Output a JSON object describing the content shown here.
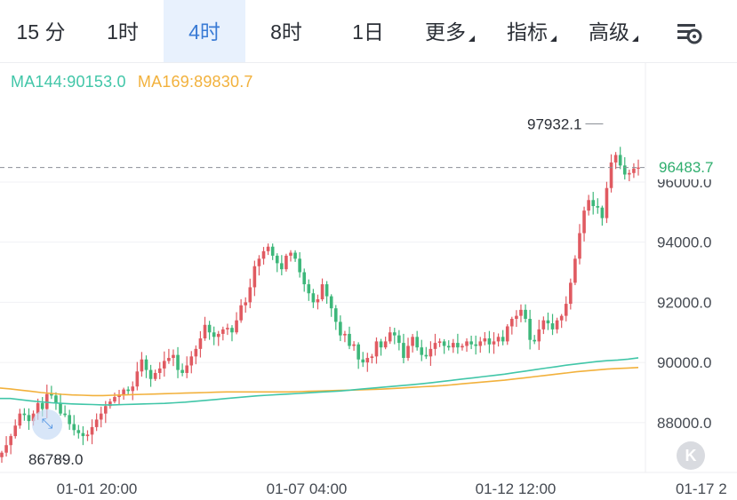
{
  "tabs": [
    {
      "label": "15 分",
      "active": false,
      "dropdown": false
    },
    {
      "label": "1时",
      "active": false,
      "dropdown": false
    },
    {
      "label": "4时",
      "active": true,
      "dropdown": false
    },
    {
      "label": "8时",
      "active": false,
      "dropdown": false
    },
    {
      "label": "1日",
      "active": false,
      "dropdown": false
    },
    {
      "label": "更多",
      "active": false,
      "dropdown": true
    },
    {
      "label": "指标",
      "active": false,
      "dropdown": true
    },
    {
      "label": "高级",
      "active": false,
      "dropdown": true
    }
  ],
  "settings_icon": "chart-settings-icon",
  "indicators": {
    "ma144_label": "MA144:90153.0",
    "ma169_label": "MA169:89830.7",
    "ma144_color": "#41c6a8",
    "ma169_color": "#f2b13c"
  },
  "colors": {
    "up": "#e05a61",
    "down": "#3db77a",
    "accent": "#3a7bd5",
    "last_price": "#2fae6e"
  },
  "price_tag": "96483.7",
  "scroll_icon": "scroll-to-latest-icon",
  "zoom_icon": "zoom-expand-icon",
  "chart_data": {
    "type": "candlestick",
    "interval": "4h",
    "y_tick_labels": [
      "88000.0",
      "90000.0",
      "92000.0",
      "94000.0",
      "96000.0"
    ],
    "y_ticks": [
      88000,
      90000,
      92000,
      94000,
      96000
    ],
    "x_tick_labels": [
      "01-01 20:00",
      "01-07 04:00",
      "01-12 12:00",
      "01-17 2"
    ],
    "ylim": [
      86400,
      99100
    ],
    "high_label": "97932.1",
    "high_value": 97932.1,
    "low_label": "86789.0",
    "low_value": 86789.0,
    "last_price": 96483.7,
    "grid": true,
    "closes": [
      87000,
      87250,
      87550,
      87900,
      88300,
      88250,
      88050,
      88300,
      88650,
      88450,
      88950,
      88900,
      88650,
      88300,
      88250,
      87950,
      87750,
      87650,
      87550,
      87600,
      87850,
      88100,
      88300,
      88550,
      88700,
      88850,
      88900,
      89100,
      89050,
      89200,
      89700,
      90100,
      89750,
      89450,
      89650,
      89800,
      90050,
      90150,
      90250,
      89750,
      89650,
      89900,
      90200,
      90450,
      90800,
      91250,
      91000,
      90850,
      90950,
      91100,
      91150,
      91000,
      91400,
      91900,
      92000,
      92500,
      93200,
      93450,
      93700,
      93850,
      93550,
      93300,
      93100,
      93550,
      93650,
      93450,
      93000,
      92600,
      92300,
      92000,
      92100,
      92600,
      92200,
      91800,
      91350,
      90900,
      90950,
      90550,
      90600,
      90100,
      90000,
      90150,
      90200,
      90700,
      90500,
      90700,
      91000,
      90900,
      90650,
      90150,
      90550,
      90850,
      90500,
      90250,
      90200,
      90450,
      90650,
      90700,
      90550,
      90500,
      90650,
      90500,
      90550,
      90700,
      90600,
      90550,
      90700,
      90800,
      90600,
      90700,
      90850,
      90700,
      91200,
      91450,
      91550,
      91750,
      91450,
      90750,
      90700,
      91100,
      91400,
      91300,
      91100,
      91400,
      91550,
      91950,
      92650,
      93450,
      94300,
      95050,
      95400,
      95200,
      95150,
      94800,
      95800,
      96650,
      96900,
      96550,
      96250,
      96300,
      96450,
      96483.7
    ],
    "ma144": [
      88800,
      88800,
      88760,
      88720,
      88690,
      88660,
      88640,
      88620,
      88610,
      88600,
      88590,
      88590,
      88600,
      88610,
      88620,
      88630,
      88640,
      88660,
      88680,
      88710,
      88740,
      88770,
      88800,
      88830,
      88860,
      88890,
      88910,
      88930,
      88950,
      88970,
      88990,
      89010,
      89030,
      89050,
      89080,
      89110,
      89140,
      89170,
      89200,
      89230,
      89260,
      89290,
      89330,
      89370,
      89410,
      89450,
      89490,
      89530,
      89570,
      89610,
      89660,
      89710,
      89760,
      89810,
      89860,
      89910,
      89950,
      89990,
      90030,
      90060,
      90080,
      90110,
      90153
    ],
    "ma169": [
      89150,
      89120,
      89080,
      89040,
      89000,
      88970,
      88940,
      88920,
      88910,
      88900,
      88900,
      88910,
      88920,
      88930,
      88940,
      88950,
      88960,
      88970,
      88980,
      88990,
      89000,
      89010,
      89020,
      89020,
      89020,
      89020,
      89020,
      89020,
      89020,
      89030,
      89040,
      89050,
      89060,
      89070,
      89080,
      89090,
      89100,
      89110,
      89130,
      89150,
      89170,
      89190,
      89210,
      89230,
      89260,
      89290,
      89320,
      89350,
      89380,
      89410,
      89450,
      89490,
      89530,
      89570,
      89610,
      89650,
      89690,
      89720,
      89750,
      89780,
      89800,
      89815,
      89830.7
    ]
  }
}
